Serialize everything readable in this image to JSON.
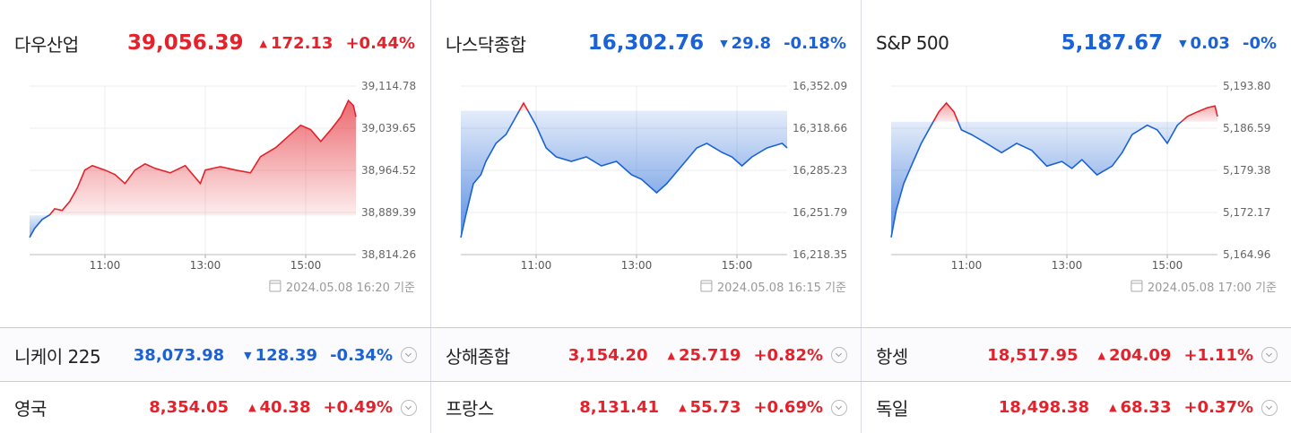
{
  "colors": {
    "up": "#e3222b",
    "down": "#1b62d4"
  },
  "panels": [
    {
      "name": "다우산업",
      "price": "39,056.39",
      "change": "172.13",
      "change_pct": "+0.44%",
      "direction": "up",
      "timestamp": "2024.05.08 16:20 기준"
    },
    {
      "name": "나스닥종합",
      "price": "16,302.76",
      "change": "29.8",
      "change_pct": "-0.18%",
      "direction": "down",
      "timestamp": "2024.05.08 16:15 기준"
    },
    {
      "name": "S&P 500",
      "price": "5,187.67",
      "change": "0.03",
      "change_pct": "-0%",
      "direction": "down",
      "timestamp": "2024.05.08 17:00 기준"
    }
  ],
  "rows": [
    [
      {
        "name": "니케이 225",
        "price": "38,073.98",
        "change": "128.39",
        "change_pct": "-0.34%",
        "direction": "down"
      },
      {
        "name": "상해종합",
        "price": "3,154.20",
        "change": "25.719",
        "change_pct": "+0.82%",
        "direction": "up"
      },
      {
        "name": "항셍",
        "price": "18,517.95",
        "change": "204.09",
        "change_pct": "+1.11%",
        "direction": "up"
      }
    ],
    [
      {
        "name": "영국",
        "price": "8,354.05",
        "change": "40.38",
        "change_pct": "+0.49%",
        "direction": "up"
      },
      {
        "name": "프랑스",
        "price": "8,131.41",
        "change": "55.73",
        "change_pct": "+0.69%",
        "direction": "up"
      },
      {
        "name": "독일",
        "price": "18,498.38",
        "change": "68.33",
        "change_pct": "+0.37%",
        "direction": "up"
      }
    ]
  ],
  "chart_data": [
    {
      "type": "line",
      "reference": 38884.26,
      "x": [
        9.5,
        9.6,
        9.75,
        9.9,
        10.0,
        10.15,
        10.3,
        10.45,
        10.6,
        10.75,
        11.0,
        11.2,
        11.4,
        11.6,
        11.8,
        12.0,
        12.3,
        12.6,
        12.9,
        13.0,
        13.3,
        13.6,
        13.9,
        14.1,
        14.4,
        14.7,
        14.9,
        15.1,
        15.3,
        15.5,
        15.7,
        15.85,
        15.95,
        16.0
      ],
      "values": [
        38845,
        38861,
        38877,
        38885,
        38896,
        38893,
        38909,
        38933,
        38965,
        38973,
        38965,
        38957,
        38941,
        38965,
        38976,
        38968,
        38960,
        38973,
        38941,
        38965,
        38971,
        38965,
        38960,
        38989,
        39005,
        39029,
        39045,
        39037,
        39016,
        39037,
        39060,
        39089,
        39080,
        39060
      ],
      "xlim": [
        9.5,
        16
      ],
      "ylim": [
        38814.26,
        39114.78
      ],
      "xticks": [
        {
          "value": 11,
          "label": "11:00"
        },
        {
          "value": 13,
          "label": "13:00"
        },
        {
          "value": 15,
          "label": "15:00"
        }
      ],
      "yticks": [
        {
          "value": 39114.78,
          "label": "39,114.78"
        },
        {
          "value": 39039.65,
          "label": "39,039.65"
        },
        {
          "value": 38964.52,
          "label": "38,964.52"
        },
        {
          "value": 38889.39,
          "label": "38,889.39"
        },
        {
          "value": 38814.26,
          "label": "38,814.26"
        }
      ],
      "grid": true
    },
    {
      "type": "line",
      "reference": 16332.56,
      "x": [
        9.5,
        9.6,
        9.75,
        9.9,
        10.0,
        10.2,
        10.4,
        10.6,
        10.75,
        10.85,
        11.0,
        11.2,
        11.4,
        11.7,
        12.0,
        12.3,
        12.6,
        12.9,
        13.1,
        13.4,
        13.6,
        13.9,
        14.2,
        14.4,
        14.7,
        14.9,
        15.1,
        15.3,
        15.6,
        15.9,
        16.0
      ],
      "values": [
        16231.9,
        16249.7,
        16274.6,
        16281.7,
        16292.3,
        16306.6,
        16313.7,
        16327.9,
        16338.6,
        16331.5,
        16320.8,
        16303.0,
        16295.9,
        16292.3,
        16295.9,
        16288.8,
        16292.3,
        16281.7,
        16278.1,
        16267.4,
        16274.6,
        16288.8,
        16303.0,
        16306.6,
        16299.5,
        16295.9,
        16288.8,
        16295.9,
        16303.0,
        16306.6,
        16303.0
      ],
      "xlim": [
        9.5,
        16
      ],
      "ylim": [
        16218.35,
        16352.09
      ],
      "xticks": [
        {
          "value": 11,
          "label": "11:00"
        },
        {
          "value": 13,
          "label": "13:00"
        },
        {
          "value": 15,
          "label": "15:00"
        }
      ],
      "yticks": [
        {
          "value": 16352.09,
          "label": "16,352.09"
        },
        {
          "value": 16318.66,
          "label": "16,318.66"
        },
        {
          "value": 16285.23,
          "label": "16,285.23"
        },
        {
          "value": 16251.79,
          "label": "16,251.79"
        },
        {
          "value": 16218.35,
          "label": "16,218.35"
        }
      ],
      "grid": true
    },
    {
      "type": "line",
      "reference": 5187.7,
      "x": [
        9.5,
        9.6,
        9.75,
        9.9,
        10.1,
        10.3,
        10.45,
        10.6,
        10.75,
        10.9,
        11.1,
        11.4,
        11.7,
        12.0,
        12.3,
        12.6,
        12.9,
        13.1,
        13.3,
        13.6,
        13.9,
        14.1,
        14.3,
        14.6,
        14.8,
        15.0,
        15.2,
        15.4,
        15.6,
        15.8,
        15.95,
        16.0
      ],
      "values": [
        5167.9,
        5172.5,
        5177.1,
        5180.1,
        5184.0,
        5187.1,
        5189.4,
        5190.9,
        5189.4,
        5186.3,
        5185.5,
        5184.0,
        5182.4,
        5184.0,
        5182.8,
        5180.1,
        5180.9,
        5179.7,
        5181.2,
        5178.6,
        5180.1,
        5182.4,
        5185.5,
        5187.1,
        5186.3,
        5184.0,
        5187.1,
        5188.6,
        5189.4,
        5190.1,
        5190.4,
        5188.6
      ],
      "xlim": [
        9.5,
        16
      ],
      "ylim": [
        5164.96,
        5193.8
      ],
      "xticks": [
        {
          "value": 11,
          "label": "11:00"
        },
        {
          "value": 13,
          "label": "13:00"
        },
        {
          "value": 15,
          "label": "15:00"
        }
      ],
      "yticks": [
        {
          "value": 5193.8,
          "label": "5,193.80"
        },
        {
          "value": 5186.59,
          "label": "5,186.59"
        },
        {
          "value": 5179.38,
          "label": "5,179.38"
        },
        {
          "value": 5172.17,
          "label": "5,172.17"
        },
        {
          "value": 5164.96,
          "label": "5,164.96"
        }
      ],
      "grid": true
    }
  ]
}
